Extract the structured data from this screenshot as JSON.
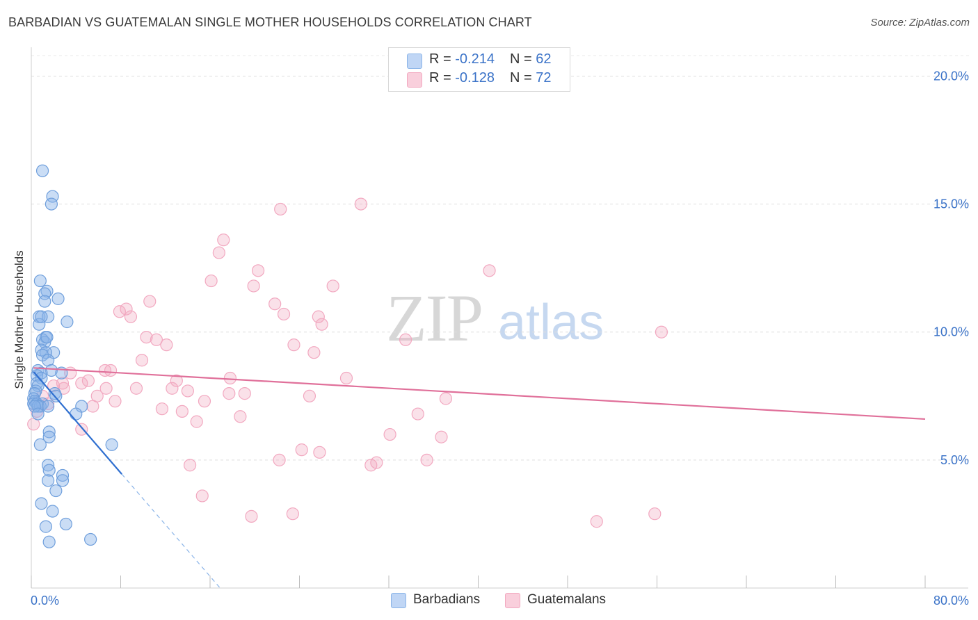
{
  "header": {
    "title": "BARBADIAN VS GUATEMALAN SINGLE MOTHER HOUSEHOLDS CORRELATION CHART",
    "source": "Source: ZipAtlas.com"
  },
  "watermark": {
    "zip": "ZIP",
    "atlas": "atlas"
  },
  "legend": {
    "rows": [
      {
        "r_label": "R = ",
        "r_value": "-0.214",
        "n_label": "N = ",
        "n_value": "62"
      },
      {
        "r_label": "R = ",
        "r_value": "-0.128",
        "n_label": "N = ",
        "n_value": "72"
      }
    ]
  },
  "bottom_legend": {
    "items": [
      "Barbadians",
      "Guatemalans"
    ]
  },
  "chart_data": {
    "type": "scatter",
    "title": "BARBADIAN VS GUATEMALAN SINGLE MOTHER HOUSEHOLDS CORRELATION CHART",
    "xlabel": "",
    "ylabel": "Single Mother Households",
    "xlim": [
      0,
      80
    ],
    "ylim": [
      0,
      20.8
    ],
    "x_tick_labels": [
      "0.0%",
      "80.0%"
    ],
    "y_ticks": [
      5,
      10,
      15,
      20
    ],
    "y_tick_labels": [
      "5.0%",
      "10.0%",
      "15.0%",
      "20.0%"
    ],
    "grid": "horizontal dashed",
    "legend_placement": "top-center",
    "colors": {
      "barbadians": "#8ab4e8",
      "barbadians_line": "#2f6fd0",
      "guatemalans": "#f2a8c0",
      "guatemalans_line": "#e0709a",
      "tick_text": "#3b73c8"
    },
    "series": [
      {
        "name": "Barbadians",
        "r": -0.214,
        "n": 62,
        "points": [
          [
            1.0,
            16.3
          ],
          [
            1.9,
            15.3
          ],
          [
            1.8,
            15.0
          ],
          [
            0.8,
            12.0
          ],
          [
            1.4,
            11.6
          ],
          [
            1.2,
            11.5
          ],
          [
            2.4,
            11.3
          ],
          [
            1.2,
            11.2
          ],
          [
            0.7,
            10.6
          ],
          [
            1.5,
            10.6
          ],
          [
            3.2,
            10.4
          ],
          [
            0.7,
            10.3
          ],
          [
            1.3,
            9.8
          ],
          [
            1.0,
            9.7
          ],
          [
            1.2,
            9.6
          ],
          [
            0.9,
            9.3
          ],
          [
            2.0,
            9.2
          ],
          [
            1.3,
            9.2
          ],
          [
            1.0,
            9.1
          ],
          [
            1.5,
            8.9
          ],
          [
            0.6,
            8.5
          ],
          [
            1.8,
            8.5
          ],
          [
            2.7,
            8.4
          ],
          [
            0.9,
            8.4
          ],
          [
            0.5,
            8.3
          ],
          [
            0.9,
            8.2
          ],
          [
            0.5,
            8.0
          ],
          [
            0.6,
            7.9
          ],
          [
            0.4,
            7.7
          ],
          [
            2.1,
            7.6
          ],
          [
            0.3,
            7.6
          ],
          [
            2.2,
            7.5
          ],
          [
            0.2,
            7.4
          ],
          [
            0.3,
            7.3
          ],
          [
            0.2,
            7.2
          ],
          [
            0.5,
            7.2
          ],
          [
            1.0,
            7.2
          ],
          [
            0.8,
            7.1
          ],
          [
            0.6,
            7.1
          ],
          [
            0.3,
            7.1
          ],
          [
            1.5,
            7.1
          ],
          [
            4.5,
            7.1
          ],
          [
            0.6,
            6.8
          ],
          [
            4.0,
            6.8
          ],
          [
            1.6,
            6.1
          ],
          [
            1.6,
            5.9
          ],
          [
            0.8,
            5.6
          ],
          [
            7.2,
            5.6
          ],
          [
            1.5,
            4.8
          ],
          [
            1.6,
            4.6
          ],
          [
            2.8,
            4.4
          ],
          [
            2.8,
            4.2
          ],
          [
            1.5,
            4.2
          ],
          [
            2.2,
            3.8
          ],
          [
            0.9,
            3.3
          ],
          [
            1.9,
            3.0
          ],
          [
            1.3,
            2.4
          ],
          [
            3.1,
            2.5
          ],
          [
            1.6,
            1.8
          ],
          [
            5.3,
            1.9
          ],
          [
            1.4,
            9.8
          ],
          [
            0.9,
            10.6
          ]
        ],
        "trend_line": {
          "x": [
            0.2,
            8.1
          ],
          "y": [
            8.45,
            4.45
          ]
        },
        "trend_extension": {
          "x": [
            8.1,
            16.9
          ],
          "y": [
            4.45,
            0.0
          ]
        }
      },
      {
        "name": "Guatemalans",
        "r": -0.128,
        "n": 72,
        "points": [
          [
            29.5,
            15.0
          ],
          [
            22.3,
            14.8
          ],
          [
            17.2,
            13.6
          ],
          [
            16.8,
            13.1
          ],
          [
            41.0,
            12.4
          ],
          [
            20.3,
            12.4
          ],
          [
            16.1,
            12.0
          ],
          [
            19.9,
            11.8
          ],
          [
            27.0,
            11.8
          ],
          [
            10.6,
            11.2
          ],
          [
            21.8,
            11.1
          ],
          [
            8.5,
            10.9
          ],
          [
            7.9,
            10.8
          ],
          [
            8.9,
            10.6
          ],
          [
            22.6,
            10.7
          ],
          [
            25.7,
            10.6
          ],
          [
            26.0,
            10.3
          ],
          [
            56.4,
            10.0
          ],
          [
            10.3,
            9.8
          ],
          [
            11.2,
            9.7
          ],
          [
            33.5,
            9.7
          ],
          [
            12.1,
            9.5
          ],
          [
            23.5,
            9.5
          ],
          [
            25.3,
            9.2
          ],
          [
            9.9,
            8.9
          ],
          [
            6.6,
            8.5
          ],
          [
            7.1,
            8.5
          ],
          [
            3.5,
            8.4
          ],
          [
            17.8,
            8.2
          ],
          [
            28.2,
            8.2
          ],
          [
            5.1,
            8.1
          ],
          [
            13.0,
            8.1
          ],
          [
            4.5,
            8.0
          ],
          [
            2.8,
            8.0
          ],
          [
            2.0,
            7.9
          ],
          [
            6.7,
            7.8
          ],
          [
            9.4,
            7.8
          ],
          [
            12.6,
            7.8
          ],
          [
            2.9,
            7.8
          ],
          [
            14.0,
            7.7
          ],
          [
            17.7,
            7.6
          ],
          [
            19.1,
            7.6
          ],
          [
            24.9,
            7.5
          ],
          [
            1.0,
            7.5
          ],
          [
            5.9,
            7.5
          ],
          [
            7.5,
            7.3
          ],
          [
            15.5,
            7.3
          ],
          [
            37.1,
            7.4
          ],
          [
            1.5,
            7.2
          ],
          [
            5.5,
            7.1
          ],
          [
            11.7,
            7.0
          ],
          [
            13.5,
            6.9
          ],
          [
            34.6,
            6.8
          ],
          [
            18.7,
            6.7
          ],
          [
            14.8,
            6.5
          ],
          [
            0.2,
            6.4
          ],
          [
            4.5,
            6.2
          ],
          [
            32.1,
            6.0
          ],
          [
            36.7,
            5.9
          ],
          [
            24.2,
            5.4
          ],
          [
            25.8,
            5.3
          ],
          [
            22.2,
            5.0
          ],
          [
            30.9,
            4.9
          ],
          [
            30.4,
            4.8
          ],
          [
            35.4,
            5.0
          ],
          [
            14.2,
            4.8
          ],
          [
            15.3,
            3.6
          ],
          [
            19.7,
            2.8
          ],
          [
            23.4,
            2.9
          ],
          [
            55.8,
            2.9
          ],
          [
            50.6,
            2.6
          ],
          [
            0.5,
            6.9
          ]
        ],
        "trend_line": {
          "x": [
            0.2,
            80.0
          ],
          "y": [
            8.6,
            6.6
          ]
        }
      }
    ]
  }
}
